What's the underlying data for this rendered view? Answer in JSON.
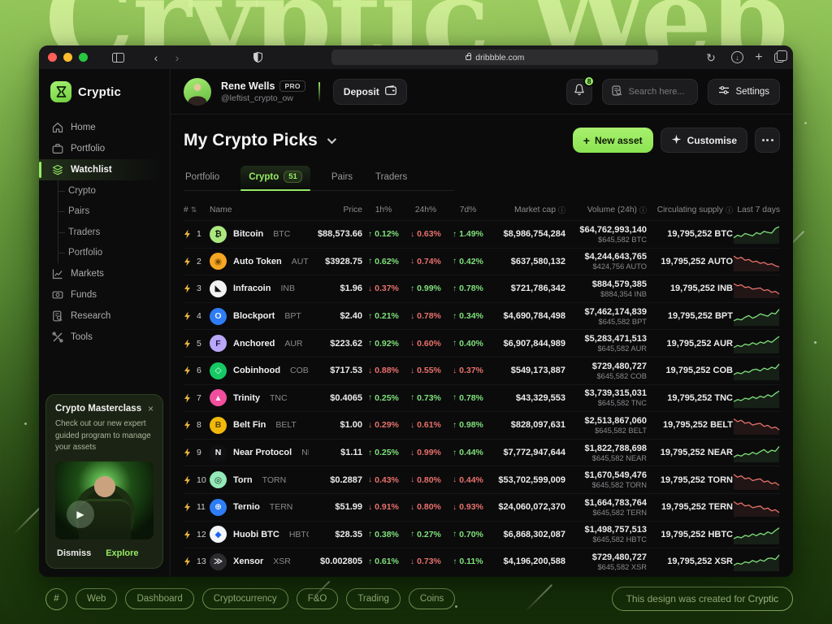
{
  "background": {
    "big_title": "Cryptic Web",
    "credit": "This design was created for Cryptic"
  },
  "browser": {
    "url": "dribbble.com"
  },
  "brand": {
    "name": "Cryptic"
  },
  "icons": {
    "sort": "⇅",
    "info": "ⓘ",
    "close": "×",
    "play": "▶",
    "plus": "+",
    "up": "↑",
    "down": "↓",
    "back": "‹",
    "forward": "›",
    "refresh": "↻",
    "download": "↓"
  },
  "user": {
    "name": "Rene Wells",
    "badge": "PRO",
    "handle": "@leftist_crypto_ow",
    "deposit_label": "Deposit",
    "notifications": "8",
    "search_placeholder": "Search here...",
    "settings_label": "Settings"
  },
  "sidebar": {
    "items": [
      {
        "label": "Home",
        "icon": "home-icon"
      },
      {
        "label": "Portfolio",
        "icon": "briefcase-icon"
      },
      {
        "label": "Watchlist",
        "icon": "layers-icon",
        "active": true,
        "children": [
          {
            "label": "Crypto"
          },
          {
            "label": "Pairs"
          },
          {
            "label": "Traders"
          },
          {
            "label": "Portfolio"
          }
        ]
      },
      {
        "label": "Markets",
        "icon": "chart-icon"
      },
      {
        "label": "Funds",
        "icon": "funds-icon"
      },
      {
        "label": "Research",
        "icon": "research-icon"
      },
      {
        "label": "Tools",
        "icon": "tools-icon"
      }
    ]
  },
  "main": {
    "title": "My Crypto Picks",
    "actions": {
      "new_asset": "New asset",
      "customise": "Customise"
    },
    "tabs": [
      {
        "label": "Portfolio"
      },
      {
        "label": "Crypto",
        "badge": "51",
        "active": true
      },
      {
        "label": "Pairs"
      },
      {
        "label": "Traders"
      }
    ],
    "table": {
      "columns": [
        {
          "label": "#",
          "sortable": true
        },
        {
          "label": "Name"
        },
        {
          "label": "Price"
        },
        {
          "label": "1h%"
        },
        {
          "label": "24h%"
        },
        {
          "label": "7d%"
        },
        {
          "label": "Market cap",
          "info": true
        },
        {
          "label": "Volume (24h)",
          "info": true
        },
        {
          "label": "Circulating supply",
          "info": true
        },
        {
          "label": "Last 7 days"
        }
      ],
      "rows": [
        {
          "rank": "1",
          "name": "Bitcoin",
          "symbol": "BTC",
          "icon": {
            "glyph": "₿",
            "bg": "#abe87f",
            "fg": "#16230c"
          },
          "price": "$88,573.66",
          "pct_1h": {
            "dir": "up",
            "val": "0.12%"
          },
          "pct_24h": {
            "dir": "down",
            "val": "0.63%"
          },
          "pct_7d": {
            "dir": "up",
            "val": "1.49%"
          },
          "market_cap": "$8,986,754,284",
          "volume": "$64,762,993,140",
          "volume_sub": "$645,582 BTC",
          "supply": "19,795,252 BTC",
          "trend": "up",
          "spark": [
            30,
            45,
            38,
            55,
            48,
            42,
            60,
            52,
            68,
            62,
            58,
            85,
            95
          ]
        },
        {
          "rank": "2",
          "name": "Auto Token",
          "symbol": "AUTO",
          "icon": {
            "glyph": "◉",
            "bg": "#f5a623",
            "fg": "#7c4d05"
          },
          "price": "$3928.75",
          "pct_1h": {
            "dir": "up",
            "val": "0.62%"
          },
          "pct_24h": {
            "dir": "down",
            "val": "0.74%"
          },
          "pct_7d": {
            "dir": "up",
            "val": "0.42%"
          },
          "market_cap": "$637,580,132",
          "volume": "$4,244,643,765",
          "volume_sub": "$424,756 AUTO",
          "supply": "19,795,252 AUTO",
          "trend": "down",
          "spark": [
            85,
            70,
            78,
            60,
            65,
            50,
            55,
            42,
            48,
            35,
            40,
            28,
            22
          ]
        },
        {
          "rank": "3",
          "name": "Infracoin",
          "symbol": "INB",
          "icon": {
            "glyph": "◣",
            "bg": "#f2f2f2",
            "fg": "#141414"
          },
          "price": "$1.96",
          "pct_1h": {
            "dir": "down",
            "val": "0.37%"
          },
          "pct_24h": {
            "dir": "up",
            "val": "0.99%"
          },
          "pct_7d": {
            "dir": "up",
            "val": "0.78%"
          },
          "market_cap": "$721,786,342",
          "volume": "$884,579,385",
          "volume_sub": "$884,354 INB",
          "supply": "19,795,252 INB",
          "trend": "down",
          "spark": [
            80,
            68,
            74,
            58,
            62,
            48,
            52,
            55,
            40,
            45,
            30,
            35,
            20
          ]
        },
        {
          "rank": "4",
          "name": "Blockport",
          "symbol": "BPT",
          "icon": {
            "glyph": "O",
            "bg": "#2e7cf6",
            "fg": "#eaf3ff"
          },
          "price": "$2.40",
          "pct_1h": {
            "dir": "up",
            "val": "0.21%"
          },
          "pct_24h": {
            "dir": "down",
            "val": "0.78%"
          },
          "pct_7d": {
            "dir": "up",
            "val": "0.34%"
          },
          "market_cap": "$4,690,784,498",
          "volume": "$7,462,174,839",
          "volume_sub": "$645,582 BPT",
          "supply": "19,795,252 BPT",
          "trend": "up",
          "spark": [
            25,
            35,
            30,
            45,
            55,
            40,
            50,
            65,
            58,
            52,
            70,
            65,
            92
          ]
        },
        {
          "rank": "5",
          "name": "Anchored",
          "symbol": "AUR",
          "icon": {
            "glyph": "F",
            "bg": "#b9a7f9",
            "fg": "#231448"
          },
          "price": "$223.62",
          "pct_1h": {
            "dir": "up",
            "val": "0.92%"
          },
          "pct_24h": {
            "dir": "down",
            "val": "0.60%"
          },
          "pct_7d": {
            "dir": "up",
            "val": "0.40%"
          },
          "market_cap": "$6,907,844,989",
          "volume": "$5,283,471,513",
          "volume_sub": "$645,582 AUR",
          "supply": "19,795,252 AUR",
          "trend": "up",
          "spark": [
            30,
            42,
            36,
            50,
            44,
            58,
            48,
            62,
            55,
            70,
            60,
            78,
            95
          ]
        },
        {
          "rank": "6",
          "name": "Cobinhood",
          "symbol": "COB",
          "icon": {
            "glyph": "◇",
            "bg": "#17c964",
            "fg": "#eafff3"
          },
          "price": "$717.53",
          "pct_1h": {
            "dir": "down",
            "val": "0.88%"
          },
          "pct_24h": {
            "dir": "down",
            "val": "0.55%"
          },
          "pct_7d": {
            "dir": "down",
            "val": "0.37%"
          },
          "market_cap": "$549,173,887",
          "volume": "$729,480,727",
          "volume_sub": "$645,582 COB",
          "supply": "19,795,252 COB",
          "trend": "up",
          "spark": [
            28,
            40,
            34,
            48,
            42,
            56,
            60,
            50,
            66,
            58,
            72,
            64,
            90
          ]
        },
        {
          "rank": "7",
          "name": "Trinity",
          "symbol": "TNC",
          "icon": {
            "glyph": "▲",
            "bg": "#f14f9e",
            "fg": "#ffe9f4"
          },
          "price": "$0.4065",
          "pct_1h": {
            "dir": "up",
            "val": "0.25%"
          },
          "pct_24h": {
            "dir": "up",
            "val": "0.73%"
          },
          "pct_7d": {
            "dir": "up",
            "val": "0.78%"
          },
          "market_cap": "$43,329,553",
          "volume": "$3,739,315,031",
          "volume_sub": "$645,582 TNC",
          "supply": "19,795,252 TNC",
          "trend": "up",
          "spark": [
            32,
            44,
            38,
            52,
            46,
            60,
            50,
            64,
            56,
            72,
            62,
            80,
            94
          ]
        },
        {
          "rank": "8",
          "name": "Belt Fin",
          "symbol": "BELT",
          "icon": {
            "glyph": "B",
            "bg": "#f0b90b",
            "fg": "#5c4300"
          },
          "price": "$1.00",
          "pct_1h": {
            "dir": "down",
            "val": "0.29%"
          },
          "pct_24h": {
            "dir": "down",
            "val": "0.61%"
          },
          "pct_7d": {
            "dir": "up",
            "val": "0.98%"
          },
          "market_cap": "$828,097,631",
          "volume": "$2,513,867,060",
          "volume_sub": "$645,582 BELT",
          "supply": "19,795,252 BELT",
          "trend": "down",
          "spark": [
            88,
            72,
            80,
            62,
            68,
            52,
            58,
            62,
            44,
            50,
            34,
            40,
            24
          ]
        },
        {
          "rank": "9",
          "name": "Near Protocol",
          "symbol": "NEAR",
          "icon": {
            "glyph": "N",
            "bg": "#101012",
            "fg": "#f2f2f2"
          },
          "price": "$1.11",
          "pct_1h": {
            "dir": "up",
            "val": "0.25%"
          },
          "pct_24h": {
            "dir": "down",
            "val": "0.99%"
          },
          "pct_7d": {
            "dir": "up",
            "val": "0.44%"
          },
          "market_cap": "$7,772,947,644",
          "volume": "$1,822,788,698",
          "volume_sub": "$645,582 NEAR",
          "supply": "19,795,252 NEAR",
          "trend": "up",
          "spark": [
            26,
            38,
            32,
            46,
            40,
            54,
            44,
            58,
            70,
            52,
            66,
            60,
            88
          ]
        },
        {
          "rank": "10",
          "name": "Torn",
          "symbol": "TORN",
          "icon": {
            "glyph": "◎",
            "bg": "#94e9b8",
            "fg": "#0d2115"
          },
          "price": "$0.2887",
          "pct_1h": {
            "dir": "down",
            "val": "0.43%"
          },
          "pct_24h": {
            "dir": "down",
            "val": "0.80%"
          },
          "pct_7d": {
            "dir": "down",
            "val": "0.44%"
          },
          "market_cap": "$53,702,599,009",
          "volume": "$1,670,549,476",
          "volume_sub": "$645,582 TORN",
          "supply": "19,795,252 TORN",
          "trend": "down",
          "spark": [
            86,
            70,
            78,
            60,
            66,
            50,
            56,
            60,
            42,
            48,
            32,
            38,
            22
          ]
        },
        {
          "rank": "11",
          "name": "Ternio",
          "symbol": "TERN",
          "icon": {
            "glyph": "⊕",
            "bg": "#2e7cf6",
            "fg": "#eaf3ff"
          },
          "price": "$51.99",
          "pct_1h": {
            "dir": "down",
            "val": "0.91%"
          },
          "pct_24h": {
            "dir": "down",
            "val": "0.80%"
          },
          "pct_7d": {
            "dir": "down",
            "val": "0.93%"
          },
          "market_cap": "$24,060,072,370",
          "volume": "$1,664,783,764",
          "volume_sub": "$645,582 TERN",
          "supply": "19,795,252 TERN",
          "trend": "down",
          "spark": [
            84,
            68,
            76,
            58,
            64,
            48,
            54,
            58,
            40,
            46,
            30,
            36,
            20
          ]
        },
        {
          "rank": "12",
          "name": "Huobi BTC",
          "symbol": "HBTC",
          "icon": {
            "glyph": "◆",
            "bg": "#f2f5f9",
            "fg": "#1c64f2"
          },
          "price": "$28.35",
          "pct_1h": {
            "dir": "up",
            "val": "0.38%"
          },
          "pct_24h": {
            "dir": "up",
            "val": "0.27%"
          },
          "pct_7d": {
            "dir": "up",
            "val": "0.70%"
          },
          "market_cap": "$6,868,302,087",
          "volume": "$1,498,757,513",
          "volume_sub": "$645,582 HBTC",
          "supply": "19,795,252 HBTC",
          "trend": "up",
          "spark": [
            28,
            40,
            34,
            48,
            42,
            56,
            46,
            60,
            52,
            68,
            58,
            76,
            92
          ]
        },
        {
          "rank": "13",
          "name": "Xensor",
          "symbol": "XSR",
          "icon": {
            "glyph": "≫",
            "bg": "#2b2b2f",
            "fg": "#ececec"
          },
          "price": "$0.002805",
          "pct_1h": {
            "dir": "up",
            "val": "0.61%"
          },
          "pct_24h": {
            "dir": "down",
            "val": "0.73%"
          },
          "pct_7d": {
            "dir": "up",
            "val": "0.11%"
          },
          "market_cap": "$4,196,200,588",
          "volume": "$729,480,727",
          "volume_sub": "$645,582 XSR",
          "supply": "19,795,252 XSR",
          "trend": "up",
          "spark": [
            30,
            42,
            36,
            50,
            44,
            58,
            48,
            62,
            54,
            70,
            72,
            64,
            90
          ]
        }
      ]
    }
  },
  "promo": {
    "title": "Crypto Masterclass",
    "description": "Check out our new expert guided program to manage your assets",
    "dismiss": "Dismiss",
    "explore": "Explore"
  },
  "footer": {
    "tags": [
      "#",
      "Web",
      "Dashboard",
      "Cryptocurrency",
      "F&O",
      "Trading",
      "Coins"
    ]
  },
  "colors": {
    "accent": "#96eb64",
    "positive": "#7fe07a",
    "negative": "#e8716b"
  }
}
